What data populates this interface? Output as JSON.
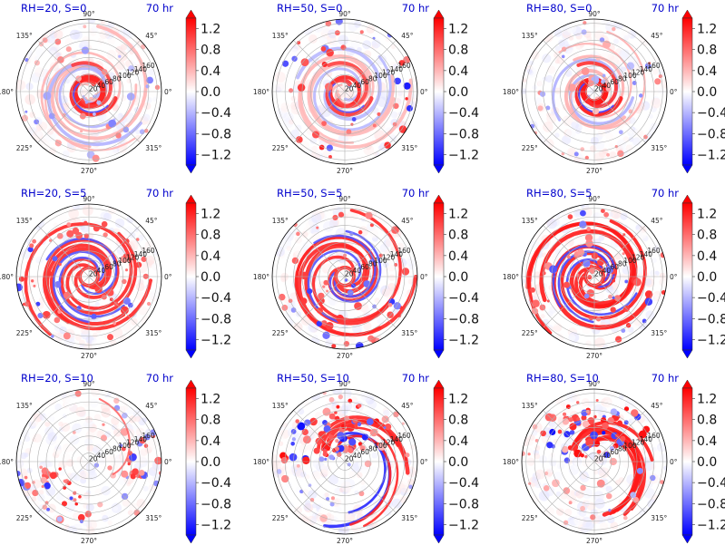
{
  "chart_data": {
    "type": "heatmap",
    "projection": "polar",
    "time_label": "70 hr",
    "angle_ticks": [
      "0°",
      "45°",
      "90°",
      "135°",
      "180°",
      "225°",
      "270°",
      "315°"
    ],
    "radial_ticks": [
      "20",
      "40",
      "60",
      "80",
      "100",
      "120",
      "140",
      "160"
    ],
    "colorbar": {
      "ticks": [
        "1.2",
        "0.8",
        "0.4",
        "0.0",
        "−0.4",
        "−0.8",
        "−1.2"
      ],
      "values": [
        1.2,
        0.8,
        0.4,
        0.0,
        -0.4,
        -0.8,
        -1.2
      ],
      "range": [
        -1.4,
        1.4
      ],
      "colormap": "bwr",
      "extend": "both"
    },
    "colors": {
      "positive": "#ff0000",
      "negative": "#0000ff",
      "zero": "#ffffff",
      "title": "#0000cc"
    },
    "panels": [
      {
        "title": "RH=20, S=0",
        "row": 0,
        "col": 0,
        "pattern": "spiral-core",
        "intensity": 0.85
      },
      {
        "title": "RH=50, S=0",
        "row": 0,
        "col": 1,
        "pattern": "ring-core",
        "intensity": 0.8
      },
      {
        "title": "RH=80, S=0",
        "row": 0,
        "col": 2,
        "pattern": "compact-core",
        "intensity": 0.9
      },
      {
        "title": "RH=20, S=5",
        "row": 1,
        "col": 0,
        "pattern": "spiral-bands",
        "intensity": 0.85
      },
      {
        "title": "RH=50, S=5",
        "row": 1,
        "col": 1,
        "pattern": "spiral-bands",
        "intensity": 0.85
      },
      {
        "title": "RH=80, S=5",
        "row": 1,
        "col": 2,
        "pattern": "spiral-bands",
        "intensity": 0.9
      },
      {
        "title": "RH=20, S=10",
        "row": 2,
        "col": 0,
        "pattern": "scattered-sheared",
        "intensity": 0.5
      },
      {
        "title": "RH=50, S=10",
        "row": 2,
        "col": 1,
        "pattern": "asymmetric-north",
        "intensity": 0.85
      },
      {
        "title": "RH=80, S=10",
        "row": 2,
        "col": 2,
        "pattern": "asymmetric-north",
        "intensity": 0.9
      }
    ]
  }
}
